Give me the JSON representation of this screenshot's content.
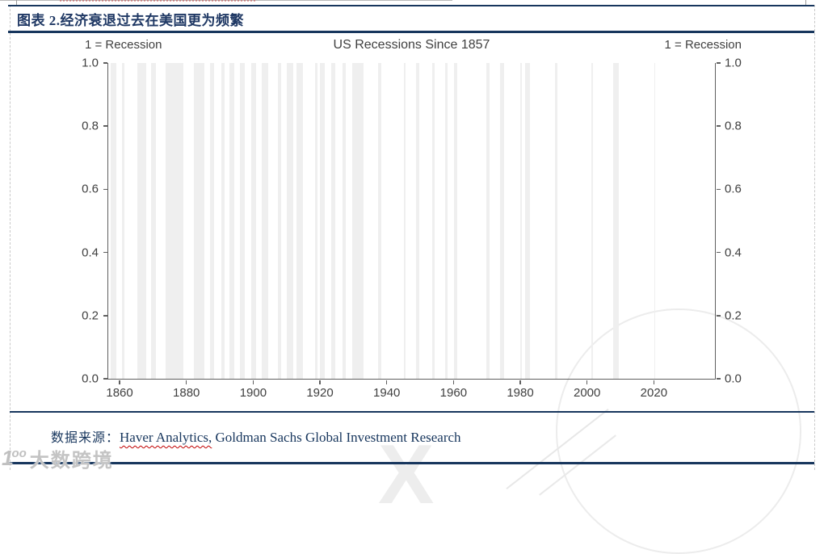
{
  "document": {
    "figure_label": "图表 2.经济衰退过去在美国更为频繁"
  },
  "chart": {
    "title": "US Recessions Since 1857",
    "left_unit_label": "1 = Recession",
    "right_unit_label": "1 = Recession"
  },
  "chart_data": {
    "type": "bar",
    "title": "US Recessions Since 1857",
    "ylabel_left": "1 = Recession",
    "ylabel_right": "1 = Recession",
    "x_domain": [
      1856.6,
      2038.3
    ],
    "x_ticks": [
      1860,
      1880,
      1900,
      1920,
      1940,
      1960,
      1980,
      2000,
      2020
    ],
    "y_ticks": [
      1.0,
      0.8,
      0.6,
      0.4,
      0.2,
      0.0
    ],
    "ylim": [
      0,
      1
    ],
    "grid": false,
    "bar_value": 1,
    "series": [
      {
        "name": "US recession indicator (1 = recession, shaded periods)",
        "periods": [
          [
            1857.42,
            1858.92
          ],
          [
            1860.75,
            1861.42
          ],
          [
            1865.25,
            1867.92
          ],
          [
            1869.42,
            1870.92
          ],
          [
            1873.75,
            1879.17
          ],
          [
            1882.17,
            1885.33
          ],
          [
            1887.17,
            1888.25
          ],
          [
            1890.5,
            1891.33
          ],
          [
            1893.0,
            1894.42
          ],
          [
            1895.92,
            1897.42
          ],
          [
            1899.42,
            1900.92
          ],
          [
            1902.67,
            1904.58
          ],
          [
            1907.33,
            1908.42
          ],
          [
            1910.0,
            1912.0
          ],
          [
            1913.0,
            1914.92
          ],
          [
            1918.58,
            1919.17
          ],
          [
            1920.0,
            1921.5
          ],
          [
            1923.33,
            1924.5
          ],
          [
            1926.75,
            1927.83
          ],
          [
            1929.58,
            1933.17
          ],
          [
            1937.33,
            1938.42
          ],
          [
            1945.08,
            1945.75
          ],
          [
            1948.83,
            1949.75
          ],
          [
            1953.5,
            1954.33
          ],
          [
            1957.58,
            1958.25
          ],
          [
            1960.25,
            1961.08
          ],
          [
            1969.92,
            1970.83
          ],
          [
            1973.83,
            1975.17
          ],
          [
            1980.0,
            1980.5
          ],
          [
            1981.5,
            1982.83
          ],
          [
            1990.5,
            1991.17
          ],
          [
            2001.17,
            2001.83
          ],
          [
            2007.92,
            2009.42
          ],
          [
            2020.08,
            2020.33
          ]
        ]
      }
    ]
  },
  "source": {
    "label_cn": "数据来源：",
    "underlined_text": "Haver Analytics,",
    "rest_text": " Goldman Sachs Global Investment Research"
  },
  "watermark": {
    "site_name": "大数跨境",
    "logo_glyph": "1",
    "logo_sup": "oo"
  },
  "colors": {
    "accent_navy": "#17365D",
    "title_navy": "#1F3864",
    "axis_gray": "#5F5F5F",
    "label_gray": "#404040",
    "bar_gray": "#EFEFEF",
    "spellcheck_red": "#C00000",
    "watermark_gray": "#C4C4C4"
  }
}
